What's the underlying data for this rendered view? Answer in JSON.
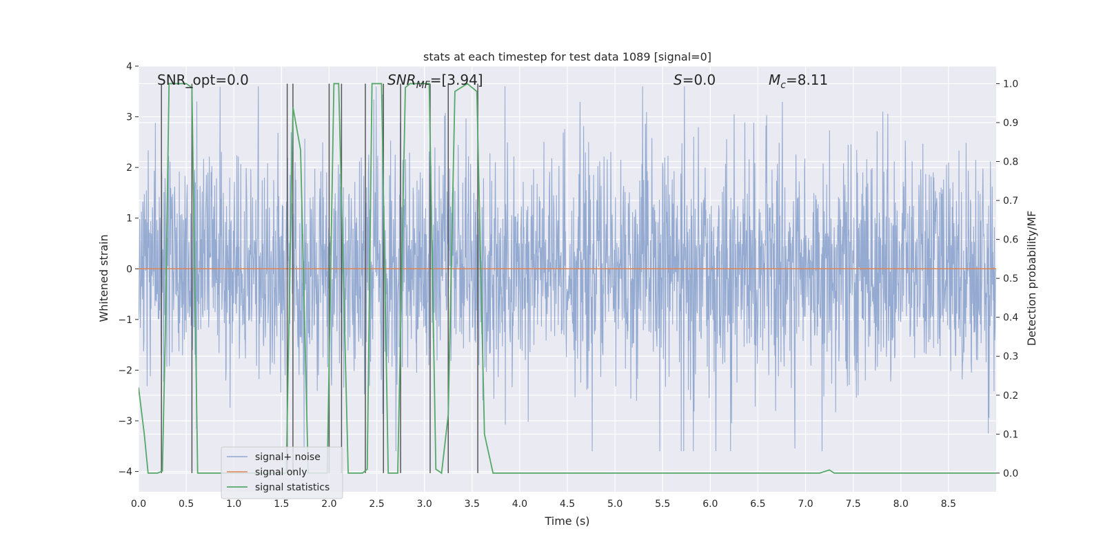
{
  "chart_data": {
    "type": "line",
    "title": "stats at each timestep for test data 1089 [signal=0]",
    "xlabel": "Time (s)",
    "ylabel": "Whitened strain",
    "ylabel_right": "Detection probability/MF",
    "xlim": [
      0.0,
      9.0
    ],
    "ylim": [
      -4.4,
      4.0
    ],
    "ylim_right": [
      -0.048,
      1.045
    ],
    "x_ticks": [
      "0.0",
      "0.5",
      "1.0",
      "1.5",
      "2.0",
      "2.5",
      "3.0",
      "3.5",
      "4.0",
      "4.5",
      "5.0",
      "5.5",
      "6.0",
      "6.5",
      "7.0",
      "7.5",
      "8.0",
      "8.5"
    ],
    "y_ticks_left": [
      "4",
      "3",
      "2",
      "1",
      "0",
      "−1",
      "−2",
      "−3",
      "−4"
    ],
    "y_ticks_right": [
      "1.0",
      "0.9",
      "0.8",
      "0.7",
      "0.6",
      "0.5",
      "0.4",
      "0.3",
      "0.2",
      "0.1",
      "0.0"
    ],
    "grid": true,
    "legend_position": "lower-left",
    "annotations": {
      "snr_opt": "SNR_opt=0.0",
      "snr_mf": "=[3.94]",
      "s": "=0.0",
      "mc": "=8.11"
    },
    "series": [
      {
        "name": "signal+ noise",
        "color": "#8fa6cf",
        "noise_amplitude_typical": 1.3,
        "noise_amplitude_peak": 3.6,
        "x_range": [
          0.0,
          9.0
        ]
      },
      {
        "name": "signal only",
        "color": "#dd8452",
        "x": [
          0.0,
          9.0
        ],
        "y": [
          0.0,
          0.0
        ]
      },
      {
        "name": "signal statistics",
        "color": "#55a868",
        "x": [
          0.0,
          0.06,
          0.1,
          0.2,
          0.25,
          0.28,
          0.32,
          0.5,
          0.56,
          0.62,
          0.9,
          1.55,
          1.62,
          1.7,
          1.78,
          1.98,
          2.05,
          2.1,
          2.2,
          2.35,
          2.4,
          2.45,
          2.55,
          2.62,
          2.72,
          2.8,
          2.85,
          3.05,
          3.12,
          3.18,
          3.25,
          3.32,
          3.45,
          3.55,
          3.63,
          3.72,
          3.8,
          7.0,
          7.15,
          7.25,
          7.3,
          9.0
        ],
        "y": [
          0.22,
          0.1,
          0.0,
          0.0,
          0.005,
          0.35,
          1.0,
          1.0,
          0.99,
          0.0,
          0.0,
          0.0,
          0.94,
          0.83,
          0.0,
          0.0,
          1.0,
          1.0,
          0.0,
          0.0,
          0.01,
          1.0,
          1.0,
          0.0,
          0.0,
          0.99,
          1.0,
          1.0,
          0.01,
          0.0,
          0.15,
          0.98,
          1.0,
          0.98,
          0.1,
          0.0,
          0.0,
          0.0,
          0.0,
          0.008,
          0.0,
          0.0
        ]
      }
    ],
    "vertical_markers": [
      0.24,
      0.56,
      1.56,
      1.62,
      2.0,
      2.13,
      2.38,
      2.57,
      2.75,
      3.06,
      3.25,
      3.56
    ]
  }
}
